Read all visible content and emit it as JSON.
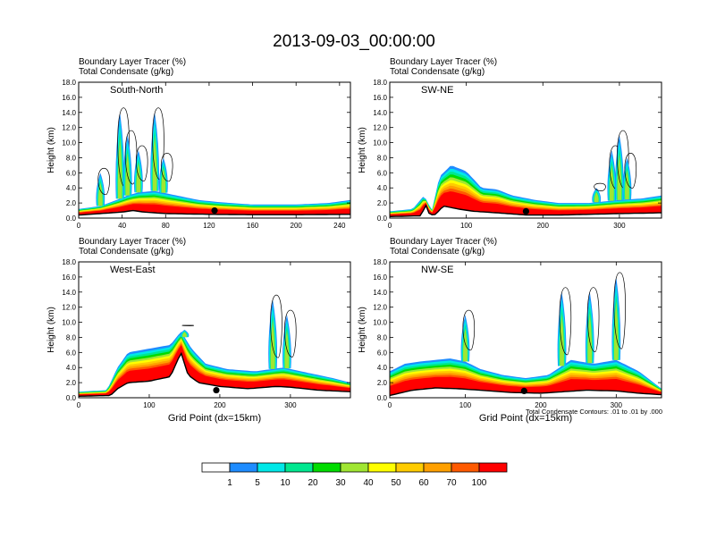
{
  "figure": {
    "title": "2013-09-03_00:00:00",
    "contour_note": "Total Condensate Contours: .01 to .01 by .000",
    "xaxis_label": "Grid Point (dx=15km)"
  },
  "colorbar": {
    "colors": [
      "#ffffff",
      "#1e8cff",
      "#00e8e8",
      "#00e890",
      "#00dc00",
      "#a0e632",
      "#ffff00",
      "#ffcc00",
      "#ffa000",
      "#ff5a00",
      "#ff0000"
    ],
    "labels": [
      "1",
      "5",
      "10",
      "20",
      "30",
      "40",
      "50",
      "60",
      "70",
      "100"
    ]
  },
  "chart_data": [
    {
      "type": "contour",
      "panel": "South-North",
      "title_line1": "Boundary Layer Tracer   (%)",
      "title_line2": "Total Condensate   (g/kg)",
      "ylabel": "Height (km)",
      "xlabel": "",
      "xlim": [
        0,
        250
      ],
      "ylim": [
        0,
        18
      ],
      "xticks": [
        0,
        40,
        80,
        120,
        160,
        200,
        240
      ],
      "yticks": [
        "0.0",
        "2.0",
        "4.0",
        "6.0",
        "8.0",
        "10.0",
        "12.0",
        "14.0",
        "16.0",
        "18.0"
      ],
      "terrain": [
        [
          0,
          0.4
        ],
        [
          20,
          0.6
        ],
        [
          40,
          0.8
        ],
        [
          50,
          1.0
        ],
        [
          60,
          0.8
        ],
        [
          80,
          0.6
        ],
        [
          120,
          0.5
        ],
        [
          160,
          0.45
        ],
        [
          200,
          0.45
        ],
        [
          250,
          0.5
        ]
      ],
      "boundary_layer_top": [
        [
          0,
          1.2
        ],
        [
          20,
          1.6
        ],
        [
          35,
          2.4
        ],
        [
          45,
          3.0
        ],
        [
          55,
          3.4
        ],
        [
          70,
          3.6
        ],
        [
          90,
          3.0
        ],
        [
          110,
          2.4
        ],
        [
          130,
          2.1
        ],
        [
          160,
          1.8
        ],
        [
          200,
          1.8
        ],
        [
          230,
          2.0
        ],
        [
          250,
          2.4
        ]
      ],
      "plumes": [
        [
          20,
          6
        ],
        [
          38,
          14
        ],
        [
          45,
          11
        ],
        [
          55,
          9
        ],
        [
          70,
          14
        ],
        [
          78,
          8
        ]
      ],
      "marker": [
        125,
        1.0
      ]
    },
    {
      "type": "contour",
      "panel": "SW-NE",
      "title_line1": "Boundary Layer Tracer   (%)",
      "title_line2": "Total Condensate   (g/kg)",
      "ylabel": "Height (km)",
      "xlabel": "",
      "xlim": [
        0,
        355
      ],
      "ylim": [
        0,
        18
      ],
      "xticks": [
        0,
        100,
        200,
        300
      ],
      "yticks": [
        "0.0",
        "2.0",
        "4.0",
        "6.0",
        "8.0",
        "10.0",
        "12.0",
        "14.0",
        "16.0",
        "18.0"
      ],
      "terrain": [
        [
          0,
          0.2
        ],
        [
          40,
          0.3
        ],
        [
          48,
          1.8
        ],
        [
          52,
          0.4
        ],
        [
          60,
          0.5
        ],
        [
          70,
          1.6
        ],
        [
          90,
          1.2
        ],
        [
          110,
          0.9
        ],
        [
          140,
          0.7
        ],
        [
          180,
          0.4
        ],
        [
          220,
          0.4
        ],
        [
          260,
          0.5
        ],
        [
          300,
          0.6
        ],
        [
          355,
          0.7
        ]
      ],
      "boundary_layer_top": [
        [
          0,
          0.9
        ],
        [
          30,
          1.2
        ],
        [
          45,
          3.0
        ],
        [
          55,
          1.0
        ],
        [
          65,
          5.5
        ],
        [
          80,
          7.0
        ],
        [
          100,
          6.2
        ],
        [
          120,
          4.0
        ],
        [
          140,
          3.8
        ],
        [
          160,
          3.0
        ],
        [
          190,
          2.4
        ],
        [
          220,
          2.0
        ],
        [
          260,
          2.0
        ],
        [
          300,
          2.4
        ],
        [
          330,
          2.6
        ],
        [
          355,
          3.0
        ]
      ],
      "plumes": [
        [
          270,
          4
        ],
        [
          290,
          9
        ],
        [
          300,
          11
        ],
        [
          310,
          8
        ]
      ],
      "marker": [
        178,
        0.9
      ]
    },
    {
      "type": "contour",
      "panel": "West-East",
      "title_line1": "Boundary Layer Tracer   (%)",
      "title_line2": "Total Condensate   (g/kg)",
      "ylabel": "Height (km)",
      "xlabel": "Grid Point (dx=15km)",
      "xlim": [
        0,
        385
      ],
      "ylim": [
        0,
        18
      ],
      "xticks": [
        0,
        100,
        200,
        300
      ],
      "yticks": [
        "0.0",
        "2.0",
        "4.0",
        "6.0",
        "8.0",
        "10.0",
        "12.0",
        "14.0",
        "16.0",
        "18.0"
      ],
      "terrain": [
        [
          0,
          0.2
        ],
        [
          45,
          0.3
        ],
        [
          55,
          1.2
        ],
        [
          70,
          2.0
        ],
        [
          100,
          2.2
        ],
        [
          130,
          2.8
        ],
        [
          145,
          6.0
        ],
        [
          155,
          3.0
        ],
        [
          170,
          2.0
        ],
        [
          200,
          1.5
        ],
        [
          240,
          1.2
        ],
        [
          280,
          1.5
        ],
        [
          300,
          1.4
        ],
        [
          340,
          1.0
        ],
        [
          385,
          0.8
        ]
      ],
      "boundary_layer_top": [
        [
          0,
          0.8
        ],
        [
          40,
          1.0
        ],
        [
          55,
          4.0
        ],
        [
          70,
          6.0
        ],
        [
          100,
          6.5
        ],
        [
          130,
          7.0
        ],
        [
          145,
          8.8
        ],
        [
          160,
          6.5
        ],
        [
          180,
          4.5
        ],
        [
          210,
          3.8
        ],
        [
          250,
          3.5
        ],
        [
          290,
          4.0
        ],
        [
          330,
          3.2
        ],
        [
          360,
          2.6
        ],
        [
          385,
          2.0
        ]
      ],
      "plumes": [
        [
          150,
          9
        ],
        [
          275,
          13
        ],
        [
          295,
          11
        ]
      ],
      "marker": [
        195,
        1.0
      ]
    },
    {
      "type": "contour",
      "panel": "NW-SE",
      "title_line1": "Boundary Layer Tracer   (%)",
      "title_line2": "Total Condensate   (g/kg)",
      "ylabel": "Height (km)",
      "xlabel": "Grid Point (dx=15km)",
      "xlim": [
        0,
        360
      ],
      "ylim": [
        0,
        18
      ],
      "xticks": [
        0,
        100,
        200,
        300
      ],
      "yticks": [
        "0.0",
        "2.0",
        "4.0",
        "6.0",
        "8.0",
        "10.0",
        "12.0",
        "14.0",
        "16.0",
        "18.0"
      ],
      "terrain": [
        [
          0,
          0.3
        ],
        [
          30,
          1.0
        ],
        [
          60,
          1.3
        ],
        [
          90,
          1.2
        ],
        [
          120,
          1.0
        ],
        [
          160,
          0.7
        ],
        [
          200,
          0.6
        ],
        [
          230,
          0.8
        ],
        [
          260,
          1.0
        ],
        [
          300,
          0.9
        ],
        [
          330,
          0.6
        ],
        [
          360,
          0.4
        ]
      ],
      "boundary_layer_top": [
        [
          0,
          3.5
        ],
        [
          20,
          4.5
        ],
        [
          40,
          4.8
        ],
        [
          60,
          5.0
        ],
        [
          80,
          5.2
        ],
        [
          100,
          4.8
        ],
        [
          120,
          3.8
        ],
        [
          150,
          3.0
        ],
        [
          180,
          2.6
        ],
        [
          210,
          3.0
        ],
        [
          240,
          5.0
        ],
        [
          270,
          4.5
        ],
        [
          300,
          5.0
        ],
        [
          330,
          3.5
        ],
        [
          360,
          1.2
        ]
      ],
      "plumes": [
        [
          228,
          14
        ],
        [
          265,
          14
        ],
        [
          300,
          16
        ],
        [
          100,
          11
        ]
      ],
      "marker": [
        178,
        0.9
      ]
    }
  ]
}
